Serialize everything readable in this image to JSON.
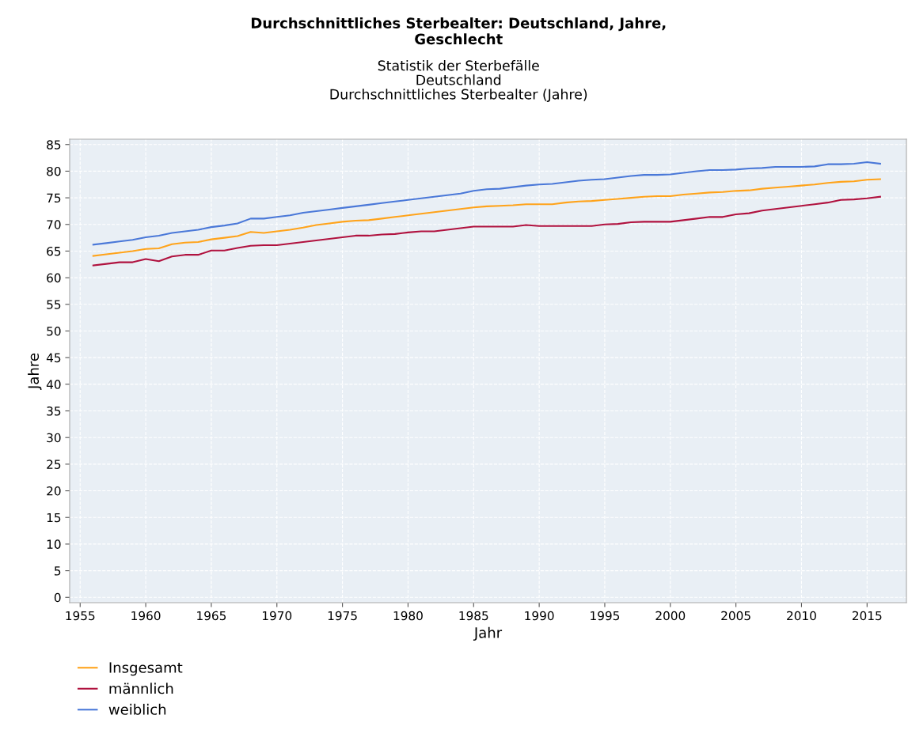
{
  "chart_data": {
    "type": "line",
    "title": "Durchschnittliches Sterbealter: Deutschland, Jahre,\nGeschlecht",
    "subtitle": "Statistik der Sterbefälle\nDeutschland\nDurchschnittliches Sterbealter (Jahre)",
    "xlabel": "Jahr",
    "ylabel": "Jahre",
    "x": [
      1956,
      1957,
      1958,
      1959,
      1960,
      1961,
      1962,
      1963,
      1964,
      1965,
      1966,
      1967,
      1968,
      1969,
      1970,
      1971,
      1972,
      1973,
      1974,
      1975,
      1976,
      1977,
      1978,
      1979,
      1980,
      1981,
      1982,
      1983,
      1984,
      1985,
      1986,
      1987,
      1988,
      1989,
      1990,
      1991,
      1992,
      1993,
      1994,
      1995,
      1996,
      1997,
      1998,
      1999,
      2000,
      2001,
      2002,
      2003,
      2004,
      2005,
      2006,
      2007,
      2008,
      2009,
      2010,
      2011,
      2012,
      2013,
      2014,
      2015,
      2016
    ],
    "series": [
      {
        "name": "Insgesamt",
        "color": "#ffa31a",
        "values": [
          64.1,
          64.4,
          64.7,
          65.0,
          65.4,
          65.5,
          66.3,
          66.6,
          66.7,
          67.2,
          67.5,
          67.8,
          68.6,
          68.4,
          68.7,
          69.0,
          69.4,
          69.9,
          70.2,
          70.5,
          70.7,
          70.8,
          71.1,
          71.4,
          71.7,
          72.0,
          72.3,
          72.6,
          72.9,
          73.2,
          73.4,
          73.5,
          73.6,
          73.8,
          73.8,
          73.8,
          74.1,
          74.3,
          74.4,
          74.6,
          74.8,
          75.0,
          75.2,
          75.3,
          75.3,
          75.6,
          75.8,
          76.0,
          76.1,
          76.3,
          76.4,
          76.7,
          76.9,
          77.1,
          77.3,
          77.5,
          77.8,
          78.0,
          78.1,
          78.4,
          78.5
        ]
      },
      {
        "name": "männlich",
        "color": "#b0123f",
        "values": [
          62.3,
          62.6,
          62.9,
          62.9,
          63.5,
          63.1,
          64.0,
          64.3,
          64.3,
          65.1,
          65.1,
          65.6,
          66.0,
          66.1,
          66.1,
          66.4,
          66.7,
          67.0,
          67.3,
          67.6,
          67.9,
          67.9,
          68.1,
          68.2,
          68.5,
          68.7,
          68.7,
          69.0,
          69.3,
          69.6,
          69.6,
          69.6,
          69.6,
          69.9,
          69.7,
          69.7,
          69.7,
          69.7,
          69.7,
          70.0,
          70.1,
          70.4,
          70.5,
          70.5,
          70.5,
          70.8,
          71.1,
          71.4,
          71.4,
          71.9,
          72.1,
          72.6,
          72.9,
          73.2,
          73.5,
          73.8,
          74.1,
          74.6,
          74.7,
          74.9,
          75.2
        ]
      },
      {
        "name": "weiblich",
        "color": "#4a78d8",
        "values": [
          66.2,
          66.5,
          66.8,
          67.1,
          67.6,
          67.9,
          68.4,
          68.7,
          69.0,
          69.5,
          69.8,
          70.2,
          71.1,
          71.1,
          71.4,
          71.7,
          72.2,
          72.5,
          72.8,
          73.1,
          73.4,
          73.7,
          74.0,
          74.3,
          74.6,
          74.9,
          75.2,
          75.5,
          75.8,
          76.3,
          76.6,
          76.7,
          77.0,
          77.3,
          77.5,
          77.6,
          77.9,
          78.2,
          78.4,
          78.5,
          78.8,
          79.1,
          79.3,
          79.3,
          79.4,
          79.7,
          80.0,
          80.2,
          80.2,
          80.3,
          80.5,
          80.6,
          80.8,
          80.8,
          80.8,
          80.9,
          81.3,
          81.3,
          81.4,
          81.7,
          81.4
        ]
      }
    ],
    "xlim": [
      1954.2,
      2018.0
    ],
    "xticks": [
      1955,
      1960,
      1965,
      1970,
      1975,
      1980,
      1985,
      1990,
      1995,
      2000,
      2005,
      2010,
      2015
    ],
    "ylim": [
      -1,
      86
    ],
    "yticks": [
      0,
      5,
      10,
      15,
      20,
      25,
      30,
      35,
      40,
      45,
      50,
      55,
      60,
      65,
      70,
      75,
      80,
      85
    ],
    "grid": true,
    "legend": "bottom left",
    "marker": "none",
    "line_style": "solid"
  }
}
